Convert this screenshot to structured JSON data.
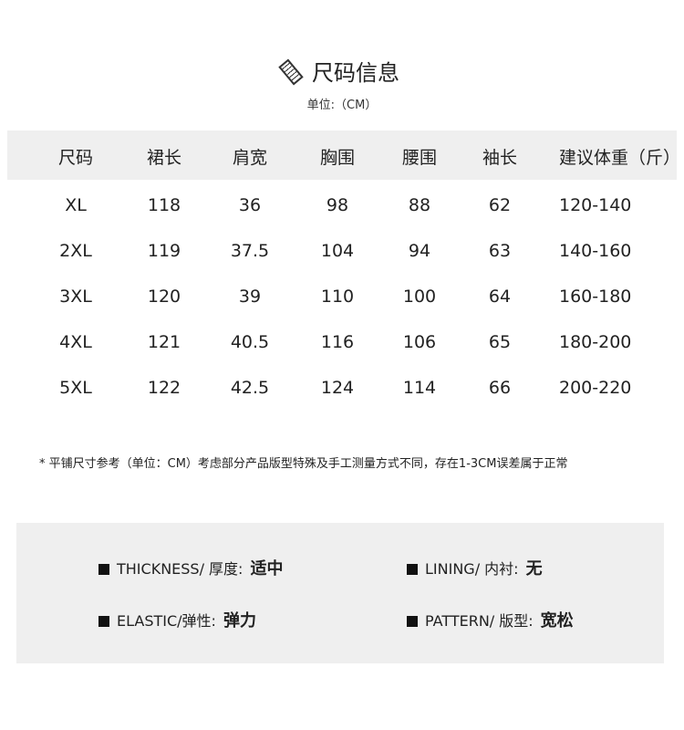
{
  "title": "尺码信息",
  "unit": "单位:（CM）",
  "table": {
    "headers": [
      "尺码",
      "裙长",
      "肩宽",
      "胸围",
      "腰围",
      "袖长",
      "建议体重（斤）"
    ],
    "rows": [
      [
        "XL",
        "118",
        "36",
        "98",
        "88",
        "62",
        "120-140"
      ],
      [
        "2XL",
        "119",
        "37.5",
        "104",
        "94",
        "63",
        "140-160"
      ],
      [
        "3XL",
        "120",
        "39",
        "110",
        "100",
        "64",
        "160-180"
      ],
      [
        "4XL",
        "121",
        "40.5",
        "116",
        "106",
        "65",
        "180-200"
      ],
      [
        "5XL",
        "122",
        "42.5",
        "124",
        "114",
        "66",
        "200-220"
      ]
    ]
  },
  "note": "* 平铺尺寸参考（单位：CM）考虑部分产品版型特殊及手工测量方式不同，存在1-3CM误差属于正常",
  "properties": [
    {
      "label": "THICKNESS/ 厚度:",
      "value": "适中"
    },
    {
      "label": "LINING/ 内衬:",
      "value": "无"
    },
    {
      "label": "ELASTIC/弹性:",
      "value": "弹力"
    },
    {
      "label": "PATTERN/ 版型:",
      "value": "宽松"
    }
  ]
}
